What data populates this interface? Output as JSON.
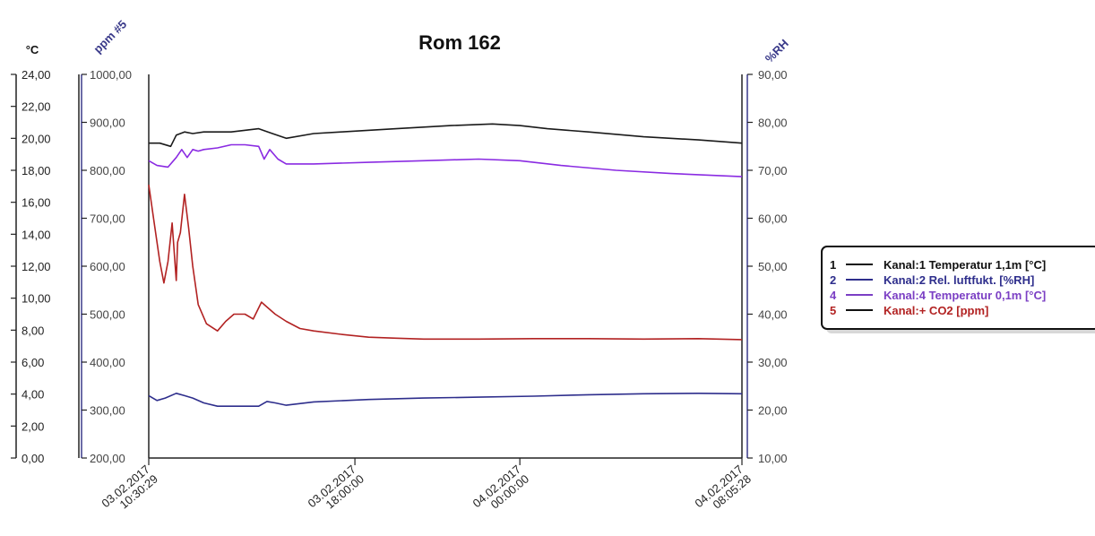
{
  "chart_data": {
    "type": "line",
    "title": "Rom 162",
    "axes": {
      "left_temp": {
        "label": "°C",
        "min": 0,
        "max": 24,
        "ticks": [
          "0,00",
          "2,00",
          "4,00",
          "6,00",
          "8,00",
          "10,00",
          "12,00",
          "14,00",
          "16,00",
          "18,00",
          "20,00",
          "22,00",
          "24,00"
        ]
      },
      "left_ppm": {
        "label": "ppm #5",
        "min": 200,
        "max": 1000,
        "ticks": [
          "200,00",
          "300,00",
          "400,00",
          "500,00",
          "600,00",
          "700,00",
          "800,00",
          "900,00",
          "1000,00"
        ]
      },
      "right_rh": {
        "label": "%RH",
        "min": 10,
        "max": 90,
        "ticks": [
          "10,00",
          "20,00",
          "30,00",
          "40,00",
          "50,00",
          "60,00",
          "70,00",
          "80,00",
          "90,00"
        ]
      }
    },
    "x_ticks": [
      {
        "hours": 0,
        "lines": [
          "03.02.2017",
          "10:30:29"
        ]
      },
      {
        "hours": 7.5,
        "lines": [
          "03.02.2017",
          "18:00:00"
        ]
      },
      {
        "hours": 13.5,
        "lines": [
          "04.02.2017",
          "00:00:00"
        ]
      },
      {
        "hours": 21.58,
        "lines": [
          "04.02.2017",
          "08:05:28"
        ]
      }
    ],
    "x_range_hours": [
      0,
      21.58
    ],
    "grid": false,
    "legend_position": "right",
    "series": [
      {
        "name": "Kanal:1 Temperatur 1,1m [°C]",
        "legend_num": "1",
        "axis": "left_temp",
        "color": "#1a1a1a",
        "x": [
          0,
          0.4,
          0.8,
          1.0,
          1.3,
          1.6,
          2.0,
          3.0,
          4.0,
          4.5,
          5.0,
          6.0,
          7.0,
          9.0,
          11.0,
          12.5,
          13.5,
          14.5,
          16.0,
          18.0,
          20.0,
          21.58
        ],
        "y": [
          19.7,
          19.7,
          19.5,
          20.2,
          20.4,
          20.3,
          20.4,
          20.4,
          20.6,
          20.3,
          20.0,
          20.3,
          20.4,
          20.6,
          20.8,
          20.9,
          20.8,
          20.6,
          20.4,
          20.1,
          19.9,
          19.7
        ]
      },
      {
        "name": "Kanal:2 Rel. luftfukt. [%RH]",
        "legend_num": "2",
        "axis": "right_rh",
        "color": "#2e2e8c",
        "x": [
          0,
          0.3,
          0.6,
          1.0,
          1.3,
          1.6,
          2.0,
          2.5,
          3.0,
          3.5,
          4.0,
          4.3,
          4.6,
          5.0,
          6.0,
          8.0,
          10.0,
          12.0,
          14.0,
          16.0,
          18.0,
          20.0,
          21.58
        ],
        "y": [
          23.0,
          22.0,
          22.5,
          23.5,
          23.0,
          22.5,
          21.5,
          20.8,
          20.8,
          20.8,
          20.8,
          21.8,
          21.5,
          21.0,
          21.7,
          22.2,
          22.5,
          22.7,
          22.9,
          23.2,
          23.4,
          23.5,
          23.4
        ]
      },
      {
        "name": "Kanal:4 Temperatur 0,1m [°C]",
        "legend_num": "4",
        "axis": "left_temp",
        "color": "#8a2be2",
        "x": [
          0,
          0.3,
          0.7,
          1.0,
          1.2,
          1.4,
          1.6,
          1.8,
          2.0,
          2.5,
          3.0,
          3.5,
          4.0,
          4.2,
          4.4,
          4.7,
          5.0,
          6.0,
          8.0,
          10.0,
          12.0,
          13.5,
          15.0,
          17.0,
          19.0,
          21.58
        ],
        "y": [
          18.6,
          18.3,
          18.2,
          18.8,
          19.3,
          18.8,
          19.3,
          19.2,
          19.3,
          19.4,
          19.6,
          19.6,
          19.5,
          18.7,
          19.3,
          18.7,
          18.4,
          18.4,
          18.5,
          18.6,
          18.7,
          18.6,
          18.3,
          18.0,
          17.8,
          17.6
        ]
      },
      {
        "name": "Kanal:+ CO2 [ppm]",
        "legend_num": "5",
        "axis": "left_ppm",
        "color": "#b22222",
        "x": [
          0,
          0.2,
          0.4,
          0.55,
          0.7,
          0.85,
          1.0,
          1.05,
          1.15,
          1.3,
          1.45,
          1.6,
          1.8,
          2.1,
          2.5,
          2.8,
          3.1,
          3.5,
          3.8,
          4.1,
          4.3,
          4.6,
          5.0,
          5.5,
          6.0,
          7.0,
          8.0,
          9.0,
          10.0,
          12.0,
          14.0,
          16.0,
          18.0,
          20.0,
          21.58
        ],
        "y": [
          770,
          690,
          610,
          565,
          610,
          690,
          570,
          650,
          670,
          750,
          680,
          600,
          520,
          480,
          465,
          485,
          500,
          500,
          490,
          525,
          515,
          500,
          485,
          470,
          465,
          458,
          452,
          450,
          448,
          448,
          449,
          449,
          448,
          449,
          447
        ]
      }
    ]
  }
}
